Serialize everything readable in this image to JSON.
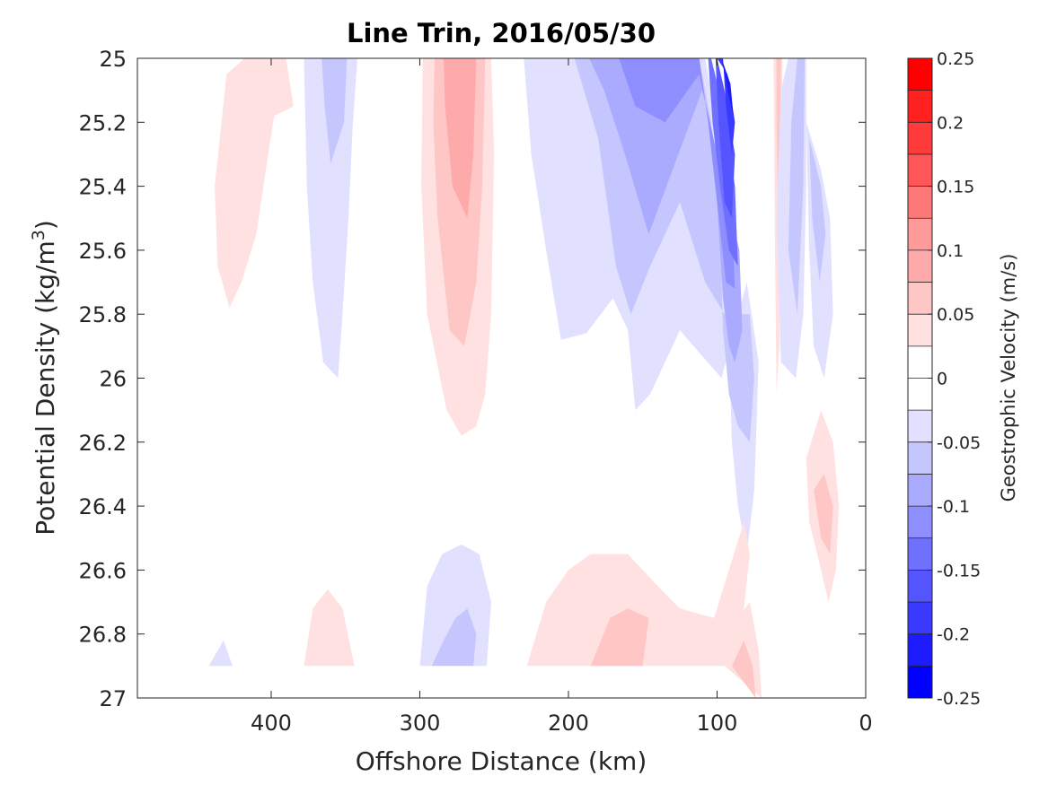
{
  "chart_data": {
    "type": "contour",
    "title": "Line Trin, 2016/05/30",
    "xlabel": "Offshore Distance (km)",
    "ylabel_prefix": "Potential Density (kg/m",
    "ylabel_sup": "3",
    "ylabel_suffix": ")",
    "xlim": [
      490,
      0
    ],
    "x_reversed": true,
    "ylim": [
      25,
      27
    ],
    "y_reversed": true,
    "x_ticks": [
      400,
      300,
      200,
      100,
      0
    ],
    "y_ticks": [
      25,
      25.2,
      25.4,
      25.6,
      25.8,
      26,
      26.2,
      26.4,
      26.6,
      26.8,
      27
    ],
    "y_tick_labels": [
      "25",
      "25.2",
      "25.4",
      "25.6",
      "25.8",
      "26",
      "26.2",
      "26.4",
      "26.6",
      "26.8",
      "27"
    ],
    "grid": false,
    "colorbar": {
      "label": "Geostrophic Velocity (m/s)",
      "range": [
        -0.25,
        0.25
      ],
      "ticks": [
        0.25,
        0.2,
        0.15,
        0.1,
        0.05,
        0,
        -0.05,
        -0.1,
        -0.15,
        -0.2,
        -0.25
      ],
      "tick_labels": [
        "0.25",
        "0.2",
        "0.15",
        "0.1",
        "0.05",
        "0",
        "-0.05",
        "-0.1",
        "-0.15",
        "-0.2",
        "-0.25"
      ],
      "levels": [
        {
          "lo": 0.225,
          "hi": 0.25,
          "color": "#ff0000"
        },
        {
          "lo": 0.2,
          "hi": 0.225,
          "color": "#ff2020"
        },
        {
          "lo": 0.175,
          "hi": 0.2,
          "color": "#ff3a3a"
        },
        {
          "lo": 0.15,
          "hi": 0.175,
          "color": "#ff5757"
        },
        {
          "lo": 0.125,
          "hi": 0.15,
          "color": "#ff7878"
        },
        {
          "lo": 0.1,
          "hi": 0.125,
          "color": "#ff9a9a"
        },
        {
          "lo": 0.075,
          "hi": 0.1,
          "color": "#ffaaaa"
        },
        {
          "lo": 0.05,
          "hi": 0.075,
          "color": "#ffc6c6"
        },
        {
          "lo": 0.025,
          "hi": 0.05,
          "color": "#ffe1e1"
        },
        {
          "lo": 0,
          "hi": 0.025,
          "color": "#ffffff"
        },
        {
          "lo": -0.025,
          "hi": 0,
          "color": "#ffffff"
        },
        {
          "lo": -0.05,
          "hi": -0.025,
          "color": "#e1e1ff"
        },
        {
          "lo": -0.075,
          "hi": -0.05,
          "color": "#c6c6ff"
        },
        {
          "lo": -0.1,
          "hi": -0.075,
          "color": "#aaaaff"
        },
        {
          "lo": -0.125,
          "hi": -0.1,
          "color": "#8e8eff"
        },
        {
          "lo": -0.15,
          "hi": -0.125,
          "color": "#7070ff"
        },
        {
          "lo": -0.175,
          "hi": -0.15,
          "color": "#5555ff"
        },
        {
          "lo": -0.2,
          "hi": -0.175,
          "color": "#3a3aff"
        },
        {
          "lo": -0.225,
          "hi": -0.2,
          "color": "#1c1cff"
        },
        {
          "lo": -0.25,
          "hi": -0.225,
          "color": "#0000ff"
        }
      ]
    },
    "regions": [
      {
        "level": 0.035,
        "pts": [
          [
            438,
            25.4
          ],
          [
            430,
            25.05
          ],
          [
            418,
            25.0
          ],
          [
            400,
            25.0
          ],
          [
            390,
            25.0
          ],
          [
            385,
            25.15
          ],
          [
            398,
            25.18
          ],
          [
            402,
            25.3
          ],
          [
            410,
            25.55
          ],
          [
            420,
            25.7
          ],
          [
            428,
            25.78
          ],
          [
            436,
            25.65
          ]
        ]
      },
      {
        "level": -0.035,
        "pts": [
          [
            378,
            25.0
          ],
          [
            342,
            25.0
          ],
          [
            345,
            25.2
          ],
          [
            348,
            25.5
          ],
          [
            352,
            25.8
          ],
          [
            355,
            26.0
          ],
          [
            365,
            25.95
          ],
          [
            372,
            25.7
          ],
          [
            376,
            25.4
          ]
        ]
      },
      {
        "level": -0.06,
        "pts": [
          [
            366,
            25.0
          ],
          [
            349,
            25.0
          ],
          [
            351,
            25.2
          ],
          [
            360,
            25.33
          ],
          [
            364,
            25.15
          ]
        ]
      },
      {
        "level": 0.035,
        "pts": [
          [
            298,
            25.0
          ],
          [
            252,
            25.0
          ],
          [
            250,
            25.3
          ],
          [
            252,
            25.8
          ],
          [
            256,
            26.05
          ],
          [
            262,
            26.15
          ],
          [
            272,
            26.18
          ],
          [
            282,
            26.1
          ],
          [
            295,
            25.8
          ],
          [
            299,
            25.4
          ]
        ]
      },
      {
        "level": 0.06,
        "pts": [
          [
            290,
            25.0
          ],
          [
            256,
            25.0
          ],
          [
            258,
            25.4
          ],
          [
            262,
            25.7
          ],
          [
            270,
            25.9
          ],
          [
            280,
            25.85
          ],
          [
            288,
            25.5
          ],
          [
            291,
            25.2
          ]
        ]
      },
      {
        "level": 0.085,
        "pts": [
          [
            284,
            25.0
          ],
          [
            262,
            25.0
          ],
          [
            264,
            25.3
          ],
          [
            268,
            25.5
          ],
          [
            278,
            25.4
          ],
          [
            283,
            25.15
          ]
        ]
      },
      {
        "level": -0.035,
        "pts": [
          [
            230,
            25.0
          ],
          [
            108,
            25.0
          ],
          [
            100,
            25.2
          ],
          [
            93,
            25.6
          ],
          [
            92,
            25.9
          ],
          [
            90,
            26.2
          ],
          [
            86,
            26.4
          ],
          [
            80,
            26.55
          ],
          [
            75,
            26.35
          ],
          [
            72,
            25.95
          ],
          [
            80,
            25.7
          ],
          [
            97,
            26.0
          ],
          [
            112,
            25.92
          ],
          [
            125,
            25.85
          ],
          [
            145,
            26.05
          ],
          [
            155,
            26.1
          ],
          [
            160,
            25.85
          ],
          [
            170,
            25.75
          ],
          [
            188,
            25.86
          ],
          [
            205,
            25.88
          ],
          [
            215,
            25.6
          ],
          [
            225,
            25.3
          ]
        ]
      },
      {
        "level": -0.06,
        "pts": [
          [
            196,
            25.0
          ],
          [
            112,
            25.0
          ],
          [
            104,
            25.2
          ],
          [
            98,
            25.5
          ],
          [
            96,
            25.85
          ],
          [
            92,
            26.05
          ],
          [
            86,
            26.15
          ],
          [
            78,
            26.2
          ],
          [
            75,
            26.0
          ],
          [
            78,
            25.8
          ],
          [
            95,
            25.8
          ],
          [
            108,
            25.7
          ],
          [
            125,
            25.45
          ],
          [
            145,
            25.65
          ],
          [
            158,
            25.8
          ],
          [
            168,
            25.65
          ],
          [
            180,
            25.25
          ]
        ]
      },
      {
        "level": -0.085,
        "pts": [
          [
            186,
            25.0
          ],
          [
            112,
            25.0
          ],
          [
            106,
            25.2
          ],
          [
            100,
            25.45
          ],
          [
            96,
            25.75
          ],
          [
            92,
            25.9
          ],
          [
            88,
            25.95
          ],
          [
            83,
            25.85
          ],
          [
            85,
            25.6
          ],
          [
            95,
            25.4
          ],
          [
            110,
            25.1
          ],
          [
            130,
            25.35
          ],
          [
            146,
            25.55
          ],
          [
            162,
            25.3
          ],
          [
            176,
            25.1
          ]
        ]
      },
      {
        "level": -0.11,
        "pts": [
          [
            166,
            25.0
          ],
          [
            112,
            25.0
          ],
          [
            106,
            25.2
          ],
          [
            100,
            25.45
          ],
          [
            94,
            25.7
          ],
          [
            88,
            25.72
          ],
          [
            90,
            25.5
          ],
          [
            100,
            25.3
          ],
          [
            112,
            25.05
          ],
          [
            135,
            25.2
          ],
          [
            155,
            25.15
          ]
        ]
      },
      {
        "level": -0.135,
        "pts": [
          [
            112,
            25.0
          ],
          [
            106,
            25.0
          ],
          [
            103,
            25.2
          ],
          [
            98,
            25.4
          ],
          [
            92,
            25.6
          ],
          [
            86,
            25.65
          ],
          [
            88,
            25.4
          ],
          [
            96,
            25.15
          ],
          [
            104,
            25.0
          ]
        ]
      },
      {
        "level": -0.16,
        "pts": [
          [
            106,
            25.0
          ],
          [
            101,
            25.0
          ],
          [
            99,
            25.2
          ],
          [
            95,
            25.45
          ],
          [
            90,
            25.5
          ],
          [
            88,
            25.3
          ],
          [
            95,
            25.1
          ],
          [
            100,
            25.0
          ]
        ]
      },
      {
        "level": -0.19,
        "pts": [
          [
            100,
            25.0
          ],
          [
            96,
            25.0
          ],
          [
            94,
            25.15
          ],
          [
            90,
            25.3
          ],
          [
            88,
            25.2
          ],
          [
            93,
            25.05
          ]
        ]
      },
      {
        "level": -0.21,
        "pts": [
          [
            97,
            25.0
          ],
          [
            92,
            25.12
          ],
          [
            89,
            25.18
          ],
          [
            91,
            25.08
          ]
        ]
      },
      {
        "level": 0.035,
        "pts": [
          [
            62,
            25.0
          ],
          [
            56,
            25.0
          ],
          [
            57,
            25.4
          ],
          [
            58,
            25.9
          ],
          [
            60,
            26.05
          ],
          [
            61,
            25.6
          ]
        ]
      },
      {
        "level": 0.06,
        "pts": [
          [
            60,
            25.0
          ],
          [
            57,
            25.0
          ],
          [
            58,
            25.3
          ],
          [
            59,
            25.5
          ],
          [
            60,
            25.2
          ]
        ]
      },
      {
        "level": -0.035,
        "pts": [
          [
            48,
            25.0
          ],
          [
            40,
            25.0
          ],
          [
            40,
            25.4
          ],
          [
            42,
            25.8
          ],
          [
            47,
            26.0
          ],
          [
            57,
            25.95
          ],
          [
            60,
            25.5
          ],
          [
            57,
            25.1
          ],
          [
            52,
            25.0
          ]
        ]
      },
      {
        "level": -0.06,
        "pts": [
          [
            46,
            25.0
          ],
          [
            41,
            25.0
          ],
          [
            42,
            25.4
          ],
          [
            46,
            25.8
          ],
          [
            52,
            25.6
          ],
          [
            50,
            25.2
          ]
        ]
      },
      {
        "level": -0.035,
        "pts": [
          [
            40,
            25.2
          ],
          [
            30,
            25.35
          ],
          [
            24,
            25.5
          ],
          [
            22,
            25.8
          ],
          [
            28,
            26.0
          ],
          [
            35,
            25.9
          ],
          [
            38,
            25.6
          ]
        ]
      },
      {
        "level": -0.06,
        "pts": [
          [
            38,
            25.25
          ],
          [
            30,
            25.4
          ],
          [
            27,
            25.55
          ],
          [
            31,
            25.7
          ],
          [
            36,
            25.5
          ]
        ]
      },
      {
        "level": 0.035,
        "pts": [
          [
            40,
            26.25
          ],
          [
            30,
            26.1
          ],
          [
            22,
            26.2
          ],
          [
            18,
            26.4
          ],
          [
            20,
            26.6
          ],
          [
            25,
            26.7
          ],
          [
            30,
            26.6
          ],
          [
            38,
            26.45
          ]
        ]
      },
      {
        "level": 0.06,
        "pts": [
          [
            35,
            26.35
          ],
          [
            28,
            26.3
          ],
          [
            22,
            26.4
          ],
          [
            24,
            26.55
          ],
          [
            30,
            26.5
          ]
        ]
      },
      {
        "level": -0.035,
        "pts": [
          [
            300,
            26.9
          ],
          [
            255,
            26.9
          ],
          [
            252,
            26.7
          ],
          [
            260,
            26.55
          ],
          [
            272,
            26.52
          ],
          [
            285,
            26.55
          ],
          [
            295,
            26.65
          ]
        ]
      },
      {
        "level": -0.06,
        "pts": [
          [
            292,
            26.9
          ],
          [
            264,
            26.9
          ],
          [
            262,
            26.8
          ],
          [
            268,
            26.72
          ],
          [
            276,
            26.75
          ],
          [
            284,
            26.82
          ]
        ]
      },
      {
        "level": 0.035,
        "pts": [
          [
            228,
            26.9
          ],
          [
            85,
            26.9
          ],
          [
            82,
            26.72
          ],
          [
            78,
            26.55
          ],
          [
            82,
            26.45
          ],
          [
            92,
            26.6
          ],
          [
            102,
            26.75
          ],
          [
            125,
            26.72
          ],
          [
            140,
            26.65
          ],
          [
            160,
            26.55
          ],
          [
            185,
            26.55
          ],
          [
            200,
            26.6
          ],
          [
            215,
            26.7
          ]
        ]
      },
      {
        "level": 0.06,
        "pts": [
          [
            185,
            26.9
          ],
          [
            150,
            26.9
          ],
          [
            146,
            26.75
          ],
          [
            160,
            26.72
          ],
          [
            172,
            26.75
          ]
        ]
      },
      {
        "level": 0.035,
        "pts": [
          [
            95,
            26.9
          ],
          [
            70,
            27.0
          ],
          [
            72,
            26.85
          ],
          [
            78,
            26.7
          ],
          [
            86,
            26.75
          ]
        ]
      },
      {
        "level": 0.06,
        "pts": [
          [
            90,
            26.9
          ],
          [
            74,
            27.0
          ],
          [
            76,
            26.9
          ],
          [
            82,
            26.82
          ]
        ]
      },
      {
        "level": 0.035,
        "pts": [
          [
            378,
            26.9
          ],
          [
            344,
            26.9
          ],
          [
            352,
            26.72
          ],
          [
            362,
            26.66
          ],
          [
            372,
            26.72
          ]
        ]
      },
      {
        "level": -0.035,
        "pts": [
          [
            442,
            26.9
          ],
          [
            432,
            26.82
          ],
          [
            426,
            26.9
          ]
        ]
      }
    ]
  }
}
